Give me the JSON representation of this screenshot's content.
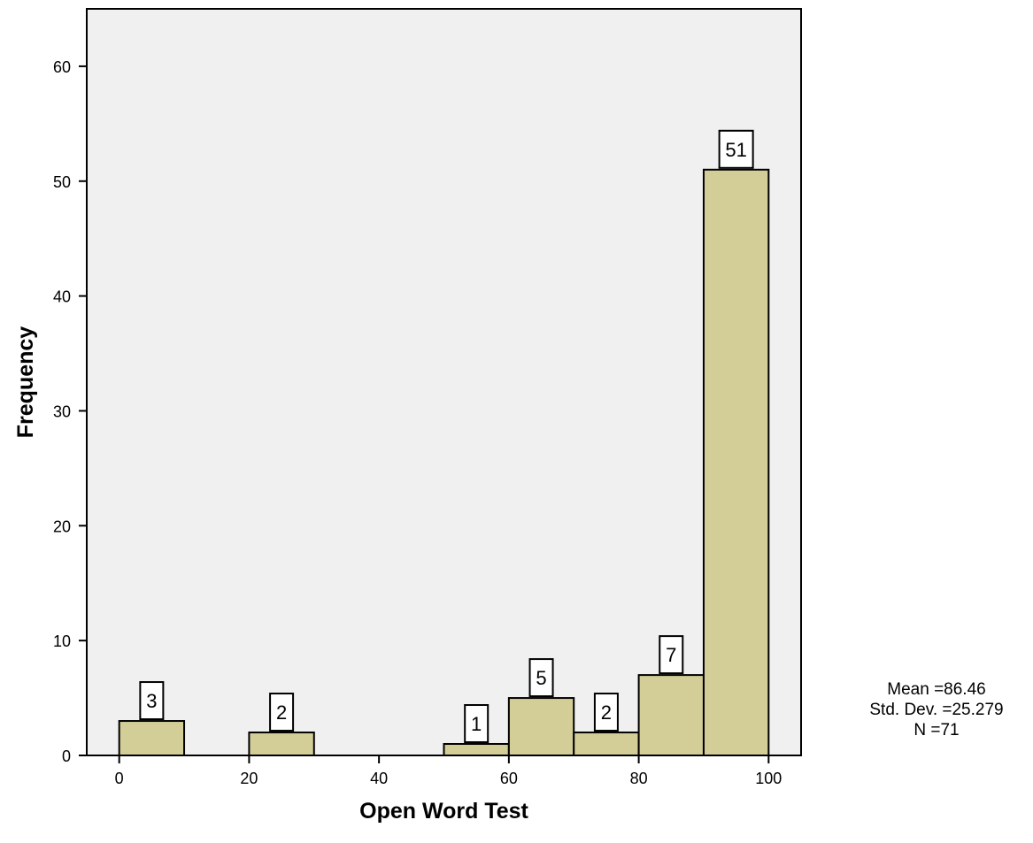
{
  "chart_data": {
    "type": "bar",
    "title": "",
    "xlabel": "Open Word Test",
    "ylabel": "Frequency",
    "xlim": [
      -5,
      105
    ],
    "ylim": [
      0,
      65
    ],
    "x_ticks": [
      0,
      20,
      40,
      60,
      80,
      100
    ],
    "y_ticks": [
      0,
      10,
      20,
      30,
      40,
      50,
      60
    ],
    "bins": [
      {
        "start": 0,
        "end": 10,
        "value": 3
      },
      {
        "start": 20,
        "end": 30,
        "value": 2
      },
      {
        "start": 50,
        "end": 60,
        "value": 1
      },
      {
        "start": 60,
        "end": 70,
        "value": 5
      },
      {
        "start": 70,
        "end": 80,
        "value": 2
      },
      {
        "start": 80,
        "end": 90,
        "value": 7
      },
      {
        "start": 90,
        "end": 100,
        "value": 51
      }
    ],
    "stats": {
      "mean": "Mean =86.46",
      "std_dev": "Std. Dev. =25.279",
      "n": "N =71"
    },
    "colors": {
      "plot_background": "#f0f0f0",
      "bar_fill": "#d3ce98",
      "bar_stroke": "#000000"
    },
    "grid": false
  }
}
